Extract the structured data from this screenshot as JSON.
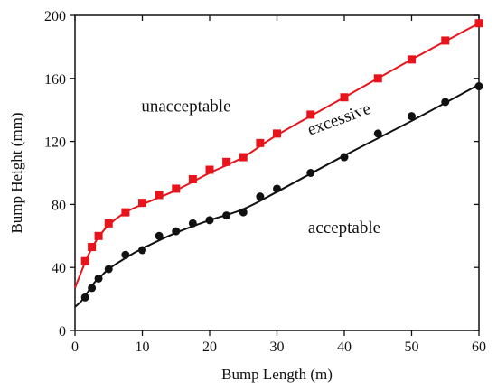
{
  "chart_data": {
    "type": "scatter",
    "xlabel": "Bump Length (m)",
    "ylabel": "Bump Height (mm)",
    "xlim": [
      0,
      60
    ],
    "ylim": [
      0,
      200
    ],
    "xticks": [
      0,
      10,
      20,
      30,
      40,
      50,
      60
    ],
    "yticks": [
      0,
      40,
      80,
      120,
      160,
      200
    ],
    "grid": false,
    "legend": "none",
    "series": [
      {
        "marker": "square",
        "color": "#e8141b",
        "points": [
          [
            1.5,
            44
          ],
          [
            2.5,
            53
          ],
          [
            3.5,
            60
          ],
          [
            5,
            68
          ],
          [
            7.5,
            75
          ],
          [
            10,
            81
          ],
          [
            12.5,
            86
          ],
          [
            15,
            90
          ],
          [
            17.5,
            96
          ],
          [
            20,
            102
          ],
          [
            22.5,
            107
          ],
          [
            25,
            110
          ],
          [
            27.5,
            119
          ],
          [
            30,
            125
          ],
          [
            35,
            137
          ],
          [
            40,
            148
          ],
          [
            45,
            160
          ],
          [
            50,
            172
          ],
          [
            55,
            184
          ],
          [
            60,
            195
          ]
        ],
        "curve": [
          [
            0,
            27
          ],
          [
            1,
            38
          ],
          [
            2,
            48
          ],
          [
            3,
            56
          ],
          [
            4,
            62
          ],
          [
            5,
            67
          ],
          [
            7.5,
            75
          ],
          [
            10,
            80
          ],
          [
            15,
            89
          ],
          [
            20,
            100
          ],
          [
            25,
            110
          ],
          [
            30,
            124
          ],
          [
            40,
            148
          ],
          [
            50,
            172
          ],
          [
            60,
            195
          ]
        ]
      },
      {
        "marker": "circle",
        "color": "#111111",
        "points": [
          [
            1.5,
            21
          ],
          [
            2.5,
            27
          ],
          [
            3.5,
            33
          ],
          [
            5,
            39
          ],
          [
            7.5,
            48
          ],
          [
            10,
            51
          ],
          [
            12.5,
            60
          ],
          [
            15,
            63
          ],
          [
            17.5,
            68
          ],
          [
            20,
            70
          ],
          [
            22.5,
            73
          ],
          [
            25,
            75
          ],
          [
            27.5,
            85
          ],
          [
            30,
            90
          ],
          [
            35,
            100
          ],
          [
            40,
            110
          ],
          [
            45,
            125
          ],
          [
            50,
            136
          ],
          [
            55,
            145
          ],
          [
            60,
            155
          ]
        ],
        "curve": [
          [
            0,
            15
          ],
          [
            1,
            19
          ],
          [
            2,
            25
          ],
          [
            3,
            31
          ],
          [
            4,
            35
          ],
          [
            5,
            39
          ],
          [
            7.5,
            46
          ],
          [
            10,
            52
          ],
          [
            15,
            62
          ],
          [
            20,
            70
          ],
          [
            25,
            77
          ],
          [
            30,
            88
          ],
          [
            40,
            111
          ],
          [
            50,
            133
          ],
          [
            60,
            156
          ]
        ]
      }
    ],
    "annotations": [
      {
        "text": "unacceptable",
        "x": 16.5,
        "y": 139,
        "rotate": 0
      },
      {
        "text": "excessive",
        "x": 39.5,
        "y": 131,
        "rotate": -20
      },
      {
        "text": "acceptable",
        "x": 40,
        "y": 62,
        "rotate": 0
      }
    ]
  }
}
